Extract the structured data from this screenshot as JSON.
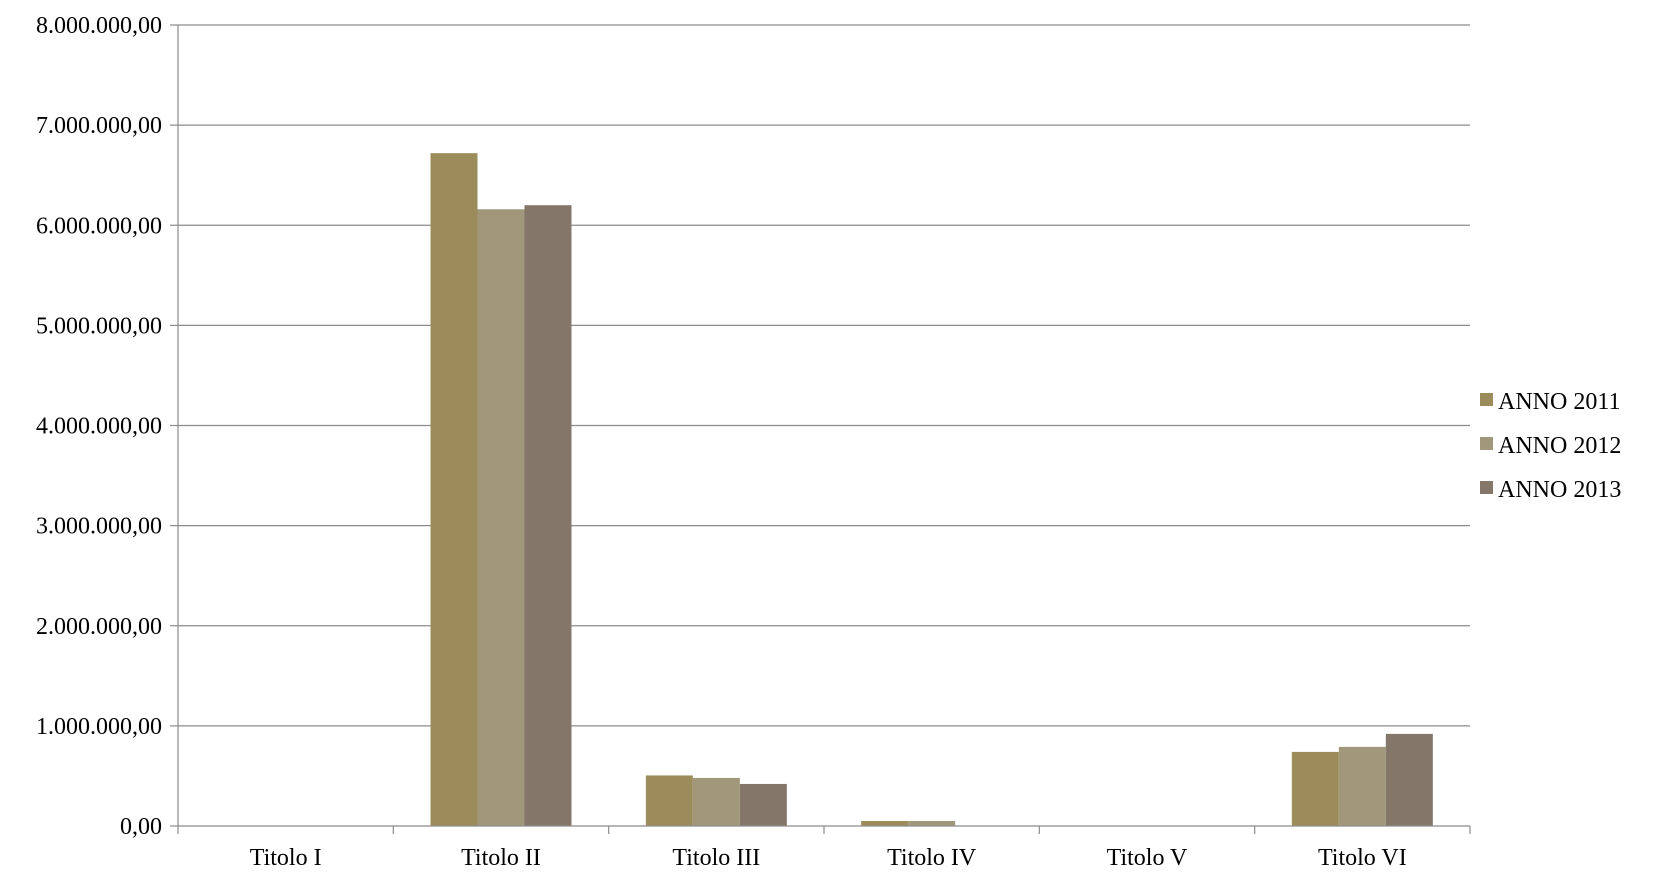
{
  "chart_data": {
    "type": "bar",
    "categories": [
      "Titolo I",
      "Titolo II",
      "Titolo III",
      "Titolo IV",
      "Titolo V",
      "Titolo VI"
    ],
    "series": [
      {
        "name": "ANNO 2011",
        "color": "#9c8c5c",
        "values": [
          0,
          6720000,
          505000,
          50000,
          0,
          740000
        ]
      },
      {
        "name": "ANNO 2012",
        "color": "#a1987c",
        "values": [
          0,
          6160000,
          480000,
          50000,
          0,
          790000
        ]
      },
      {
        "name": "ANNO 2013",
        "color": "#85766a",
        "values": [
          0,
          6200000,
          420000,
          0,
          0,
          920000
        ]
      }
    ],
    "y_ticks": [
      "0,00",
      "1.000.000,00",
      "2.000.000,00",
      "3.000.000,00",
      "4.000.000,00",
      "5.000.000,00",
      "6.000.000,00",
      "7.000.000,00",
      "8.000.000,00"
    ],
    "ylim": [
      0,
      8000000
    ],
    "title": "",
    "xlabel": "",
    "ylabel": "",
    "grid": true,
    "legend_position": "right"
  }
}
